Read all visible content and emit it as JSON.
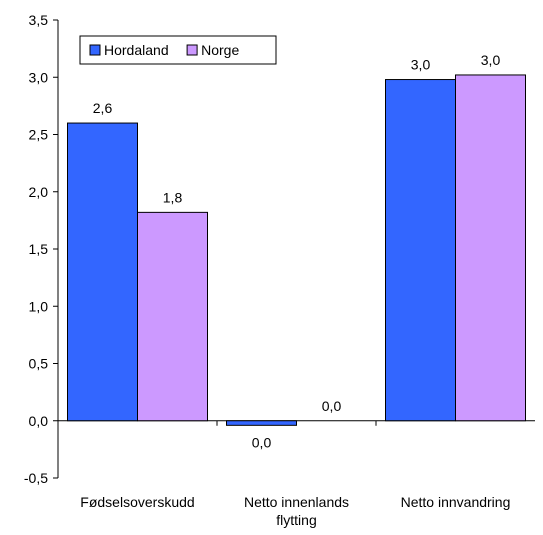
{
  "chart_data": {
    "type": "bar",
    "title": "",
    "xlabel": "",
    "ylabel": "",
    "ylim": [
      -0.5,
      3.5
    ],
    "y_ticks": [
      "-0,5",
      "0,0",
      "0,5",
      "1,0",
      "1,5",
      "2,0",
      "2,5",
      "3,0",
      "3,5"
    ],
    "y_tick_values": [
      -0.5,
      0,
      0.5,
      1.0,
      1.5,
      2.0,
      2.5,
      3.0,
      3.5
    ],
    "categories": [
      "Fødselsoverskudd",
      "Netto innenlands flytting",
      "Netto innvandring"
    ],
    "category_lines": [
      [
        "Fødselsoverskudd"
      ],
      [
        "Netto innenlands",
        "flytting"
      ],
      [
        "Netto innvandring"
      ]
    ],
    "series": [
      {
        "name": "Hordaland",
        "color": "#3366ff",
        "values": [
          2.6,
          -0.04,
          2.98
        ],
        "labels": [
          "2,6",
          "0,0",
          "3,0"
        ]
      },
      {
        "name": "Norge",
        "color": "#cc99ff",
        "values": [
          1.82,
          0.0,
          3.02
        ],
        "labels": [
          "1,8",
          "0,0",
          "3,0"
        ]
      }
    ],
    "legend_position": "top-left",
    "grid": false
  }
}
